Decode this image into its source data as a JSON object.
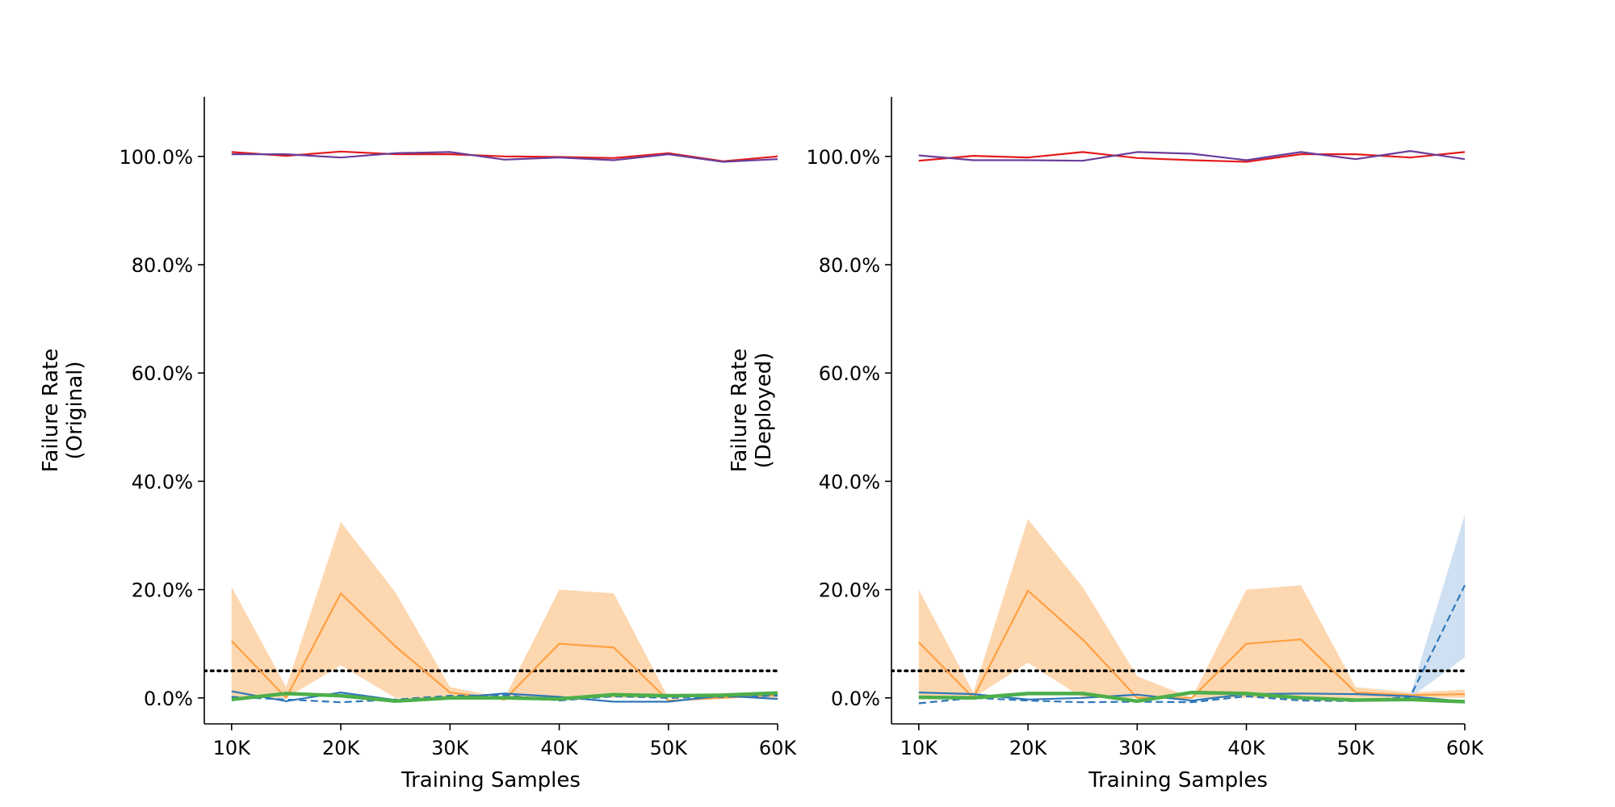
{
  "chart_data": [
    {
      "type": "line",
      "xlabel": "Training Samples",
      "ylabel": [
        "Failure Rate",
        "(Original)"
      ],
      "xlim": [
        7500,
        60000
      ],
      "ylim": [
        -0.048,
        1.11
      ],
      "x_ticks": [
        10000,
        20000,
        30000,
        40000,
        50000,
        60000
      ],
      "x_tick_labels": [
        "10K",
        "20K",
        "30K",
        "40K",
        "50K",
        "60K"
      ],
      "y_ticks": [
        0,
        0.2,
        0.4,
        0.6,
        0.8,
        1.0
      ],
      "y_tick_labels": [
        "0.0%",
        "20.0%",
        "40.0%",
        "60.0%",
        "80.0%",
        "100.0%"
      ],
      "grid": false,
      "reference_line": {
        "y": 0.05,
        "style": "dotted",
        "color": "#000000"
      },
      "x": [
        10000,
        15000,
        20000,
        25000,
        30000,
        35000,
        40000,
        45000,
        50000,
        55000,
        60000
      ],
      "series": [
        {
          "color": "#e41a1c",
          "style": "solid",
          "width": 2.2,
          "values": [
            1.008,
            1.001,
            1.009,
            1.004,
            1.004,
            1.0,
            0.999,
            0.997,
            1.006,
            0.991,
            1.0
          ]
        },
        {
          "color": "#6a3d9a",
          "style": "solid",
          "width": 2.2,
          "values": [
            1.004,
            1.004,
            0.998,
            1.006,
            1.008,
            0.994,
            0.998,
            0.993,
            1.004,
            0.99,
            0.995
          ]
        },
        {
          "color": "#ff9f40",
          "style": "solid",
          "width": 2.2,
          "values": [
            0.105,
            0.0,
            0.193,
            0.095,
            0.01,
            -0.003,
            0.1,
            0.093,
            -0.005,
            0.0,
            0.005
          ],
          "band_low": [
            0.0,
            0.0,
            0.06,
            0.0,
            0.0,
            0.0,
            0.0,
            0.0,
            0.0,
            0.0,
            0.0
          ],
          "band_high": [
            0.205,
            0.02,
            0.325,
            0.195,
            0.02,
            0.0,
            0.2,
            0.193,
            0.0,
            0.0,
            0.01
          ],
          "band_color": "#fdd0a2"
        },
        {
          "color": "#2f77b8",
          "style": "solid",
          "width": 2.2,
          "values": [
            0.012,
            -0.006,
            0.01,
            -0.004,
            0.0,
            0.008,
            0.002,
            -0.007,
            -0.007,
            0.004,
            -0.002
          ]
        },
        {
          "color": "#2f77b8",
          "style": "dashed",
          "width": 2.2,
          "values": [
            0.002,
            -0.003,
            -0.008,
            -0.003,
            0.004,
            0.005,
            -0.005,
            0.003,
            0.0,
            0.002,
            0.004
          ]
        },
        {
          "color": "#4daf4a",
          "style": "solid",
          "width": 4.5,
          "values": [
            -0.003,
            0.008,
            0.004,
            -0.006,
            0.0,
            0.0,
            -0.002,
            0.006,
            0.004,
            0.005,
            0.009
          ]
        }
      ]
    },
    {
      "type": "line",
      "xlabel": "Training Samples",
      "ylabel": [
        "Failure Rate",
        "(Deployed)"
      ],
      "xlim": [
        7500,
        60000
      ],
      "ylim": [
        -0.048,
        1.11
      ],
      "x_ticks": [
        10000,
        20000,
        30000,
        40000,
        50000,
        60000
      ],
      "x_tick_labels": [
        "10K",
        "20K",
        "30K",
        "40K",
        "50K",
        "60K"
      ],
      "y_ticks": [
        0,
        0.2,
        0.4,
        0.6,
        0.8,
        1.0
      ],
      "y_tick_labels": [
        "0.0%",
        "20.0%",
        "40.0%",
        "60.0%",
        "80.0%",
        "100.0%"
      ],
      "grid": false,
      "reference_line": {
        "y": 0.05,
        "style": "dotted",
        "color": "#000000"
      },
      "x": [
        10000,
        15000,
        20000,
        25000,
        30000,
        35000,
        40000,
        45000,
        50000,
        55000,
        60000
      ],
      "series": [
        {
          "color": "#e41a1c",
          "style": "solid",
          "width": 2.2,
          "values": [
            0.992,
            1.001,
            0.998,
            1.008,
            0.997,
            0.993,
            0.99,
            1.004,
            1.004,
            0.998,
            1.008
          ]
        },
        {
          "color": "#6a3d9a",
          "style": "solid",
          "width": 2.2,
          "values": [
            1.002,
            0.993,
            0.993,
            0.992,
            1.008,
            1.005,
            0.993,
            1.008,
            0.995,
            1.01,
            0.995
          ]
        },
        {
          "color": "#ff9f40",
          "style": "solid",
          "width": 2.2,
          "values": [
            0.103,
            0.0,
            0.198,
            0.108,
            0.0,
            0.0,
            0.1,
            0.108,
            0.01,
            0.005,
            0.007
          ],
          "band_low": [
            0.0,
            0.0,
            0.065,
            0.0,
            0.0,
            0.0,
            0.0,
            0.0,
            0.0,
            0.0,
            0.0
          ],
          "band_high": [
            0.2,
            0.01,
            0.33,
            0.205,
            0.04,
            0.0,
            0.2,
            0.208,
            0.02,
            0.01,
            0.015
          ],
          "band_color": "#fdd0a2"
        },
        {
          "color": "#2f77b8",
          "style": "solid",
          "width": 2.2,
          "values": [
            0.01,
            0.007,
            -0.003,
            0.0,
            0.006,
            -0.005,
            0.007,
            0.008,
            0.007,
            0.003,
            -0.007
          ]
        },
        {
          "color": "#2f77b8",
          "style": "dashed",
          "width": 2.2,
          "values": [
            -0.01,
            0.0,
            -0.005,
            -0.008,
            -0.007,
            -0.008,
            0.003,
            -0.005,
            -0.006,
            0.002,
            0.208
          ],
          "band_low": [
            null,
            null,
            null,
            null,
            null,
            null,
            null,
            null,
            null,
            0.0,
            0.075
          ],
          "band_high": [
            null,
            null,
            null,
            null,
            null,
            null,
            null,
            null,
            null,
            0.005,
            0.338
          ],
          "band_color": "#c6dbef"
        },
        {
          "color": "#4daf4a",
          "style": "solid",
          "width": 4.5,
          "values": [
            0.001,
            0.0,
            0.008,
            0.008,
            -0.006,
            0.01,
            0.008,
            0.0,
            -0.004,
            -0.003,
            -0.007
          ]
        }
      ]
    }
  ]
}
